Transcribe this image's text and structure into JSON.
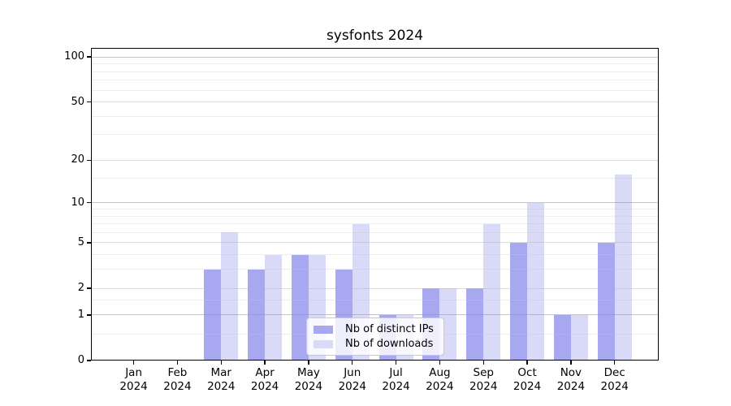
{
  "title": "sysfonts 2024",
  "colors": {
    "bar_distinct_ips": "#a8a8f0",
    "bar_downloads": "#d9d9f8",
    "grid_strong": "rgba(148,148,148,0.55)",
    "grid_major": "rgba(178,178,178,0.45)",
    "grid_minor": "rgba(198,198,198,0.32)",
    "axis": "#000000",
    "text": "#000000",
    "legend_border": "#c9c9c9",
    "legend_background": "rgba(255,255,255,0.8)"
  },
  "y_axis": {
    "scale": "log1p",
    "range": [
      0,
      116
    ],
    "tick_values": [
      0,
      1,
      2,
      5,
      10,
      20,
      50,
      100
    ],
    "gridlines": {
      "strong": [
        1,
        10,
        100
      ],
      "major": [
        2,
        5,
        20,
        50
      ],
      "minor": [
        0.5,
        1.5,
        3,
        4,
        6,
        7,
        8,
        9,
        15,
        30,
        40,
        60,
        70,
        80,
        90
      ]
    }
  },
  "x_axis": {
    "months": [
      "Jan",
      "Feb",
      "Mar",
      "Apr",
      "May",
      "Jun",
      "Jul",
      "Aug",
      "Sep",
      "Oct",
      "Nov",
      "Dec"
    ],
    "year": "2024"
  },
  "legend": {
    "entries": [
      "Nb of distinct IPs",
      "Nb of downloads"
    ],
    "position": "lower center inside plot"
  },
  "chart_data": {
    "type": "bar",
    "title": "sysfonts 2024",
    "categories": [
      "Jan 2024",
      "Feb 2024",
      "Mar 2024",
      "Apr 2024",
      "May 2024",
      "Jun 2024",
      "Jul 2024",
      "Aug 2024",
      "Sep 2024",
      "Oct 2024",
      "Nov 2024",
      "Dec 2024"
    ],
    "series": [
      {
        "name": "Nb of distinct IPs",
        "color": "#a8a8f0",
        "values": [
          0,
          0,
          3,
          3,
          4,
          3,
          1,
          2,
          2,
          5,
          1,
          5
        ]
      },
      {
        "name": "Nb of downloads",
        "color": "#d9d9f8",
        "values": [
          0,
          0,
          6,
          4,
          4,
          7,
          1,
          2,
          7,
          10,
          1,
          16
        ]
      }
    ],
    "xlabel": "",
    "ylabel": "",
    "yscale": "log1p",
    "ylim": [
      0,
      116
    ],
    "y_ticks": [
      0,
      1,
      2,
      5,
      10,
      20,
      50,
      100
    ],
    "grid": true,
    "legend_position": "lower center (inside axes)"
  }
}
